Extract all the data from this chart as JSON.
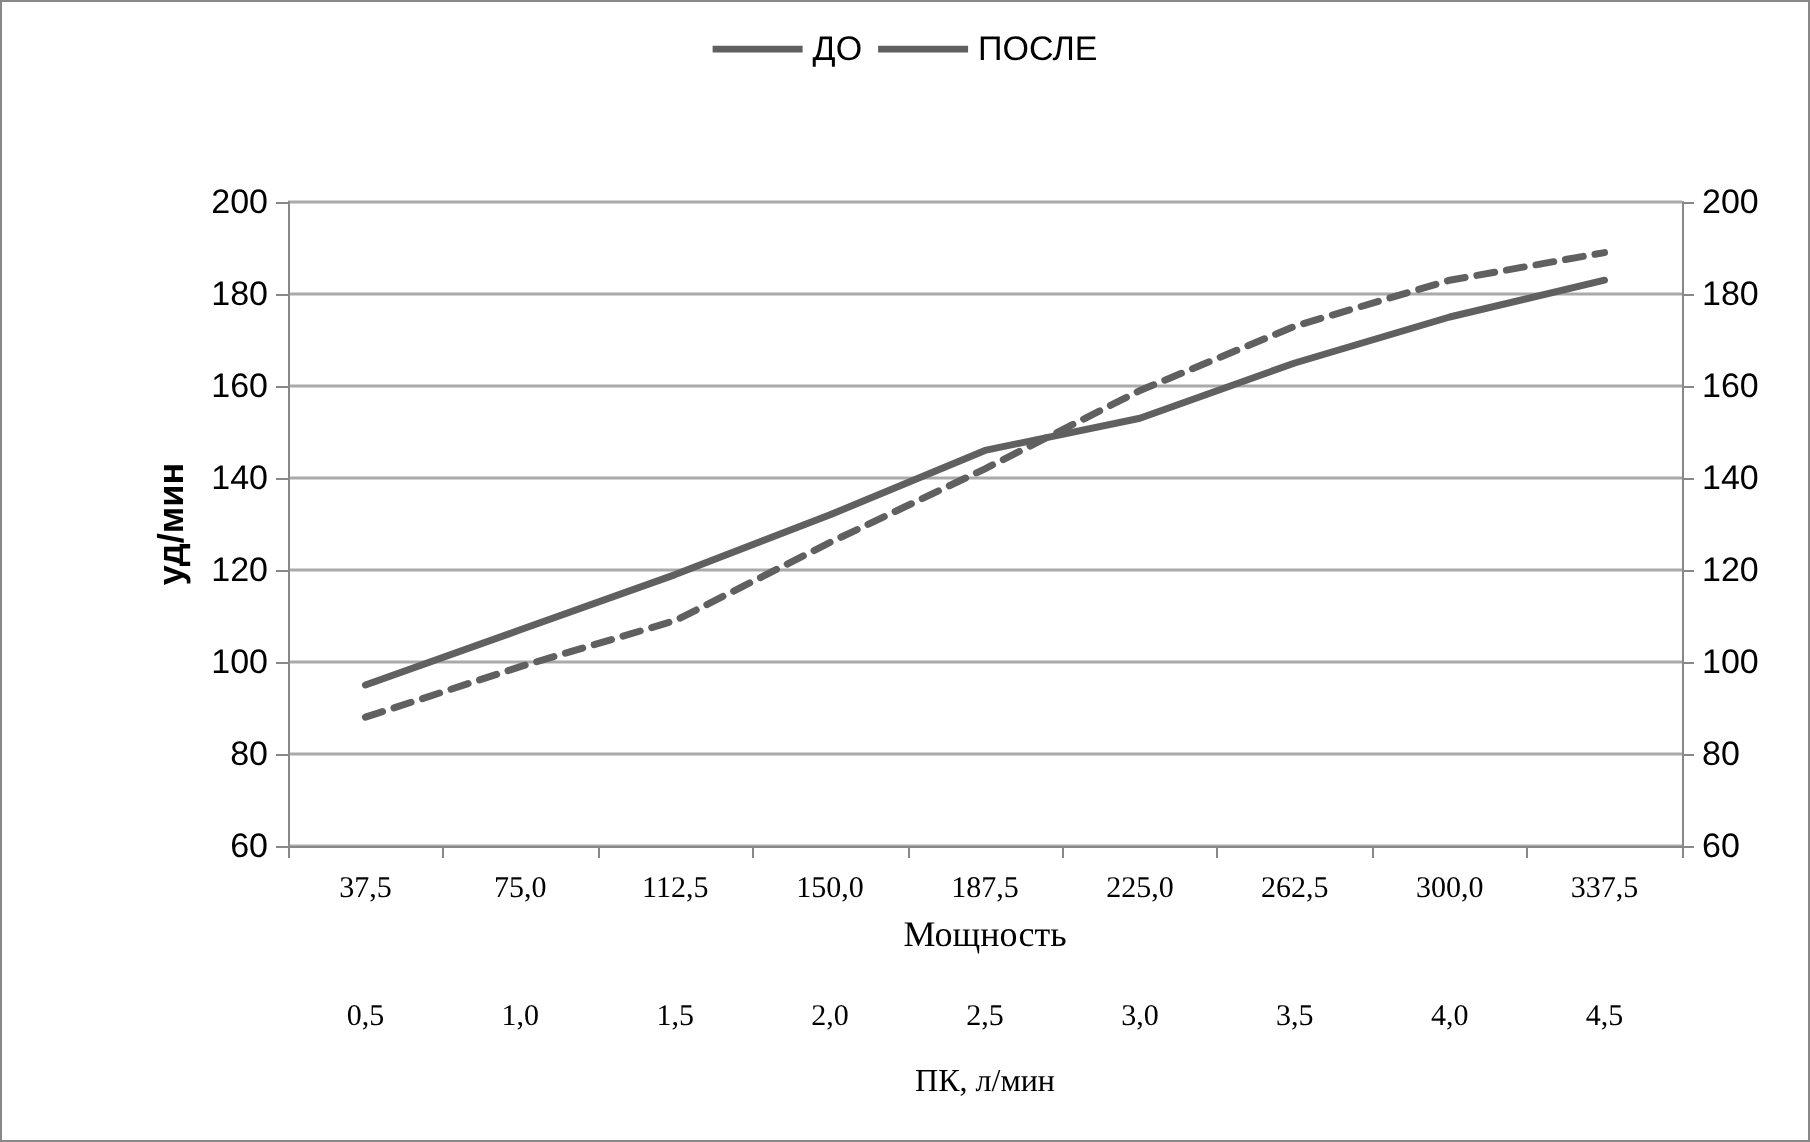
{
  "chart_data": {
    "type": "line",
    "xlabel": "Мощность",
    "ylabel": "уд/мин",
    "x2label": "ПК, л/мин",
    "categories": [
      "37,5",
      "75,0",
      "112,5",
      "150,0",
      "187,5",
      "225,0",
      "262,5",
      "300,0",
      "337,5"
    ],
    "series": [
      {
        "name": "ДО",
        "color": "#606060",
        "line_style": "solid",
        "values": [
          95,
          107,
          119,
          132,
          146,
          153,
          165,
          175,
          183
        ]
      },
      {
        "name": "ПОСЛЕ",
        "color": "#606060",
        "line_style": "dashed",
        "values": [
          88,
          99,
          109,
          126,
          142,
          159,
          173,
          183,
          189
        ]
      }
    ],
    "ylim": [
      60,
      200
    ],
    "yticks": [
      60,
      80,
      100,
      120,
      140,
      160,
      180,
      200
    ],
    "y2lim": [
      60,
      200
    ],
    "y2ticks": [
      60,
      80,
      100,
      120,
      140,
      160,
      180,
      200
    ],
    "x2lim": [
      0.25,
      4.75
    ],
    "x2ticks": [
      {
        "value": 0.5,
        "label": "0,5"
      },
      {
        "value": 1,
        "label": "1,0"
      },
      {
        "value": 1.5,
        "label": "1,5"
      },
      {
        "value": 2,
        "label": "2,0"
      },
      {
        "value": 2.5,
        "label": "2,5"
      },
      {
        "value": 3,
        "label": "3,0"
      },
      {
        "value": 3.5,
        "label": "3,5"
      },
      {
        "value": 4,
        "label": "4,0"
      },
      {
        "value": 4.5,
        "label": "4,5"
      }
    ],
    "grid": "y",
    "legend": "top",
    "marker": "none"
  }
}
